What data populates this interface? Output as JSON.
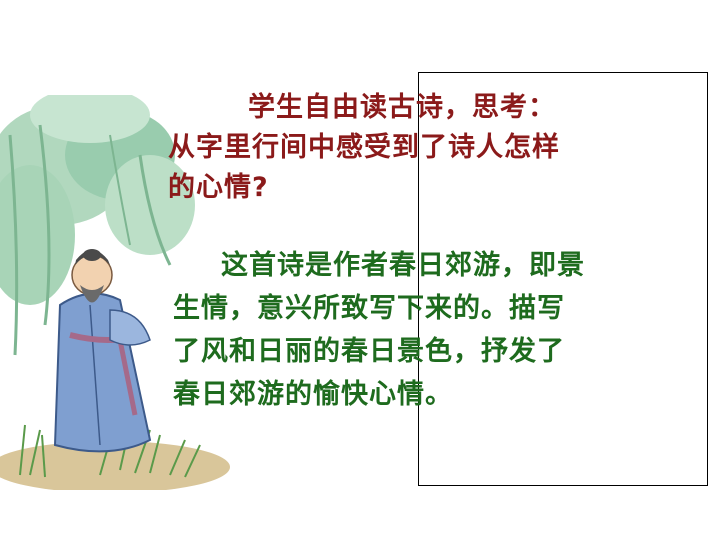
{
  "question": {
    "line1": "学生自由读古诗，思考：",
    "line2": "从字里行间中感受到了诗人怎样",
    "line3": "的心情?"
  },
  "answer": {
    "line1": "这首诗是作者春日郊游，即景",
    "line2": "生情，意兴所致写下来的。描写",
    "line3": "了风和日丽的春日景色，抒发了",
    "line4": "春日郊游的愉快心情。"
  },
  "colors": {
    "question_text": "#8b1a1a",
    "answer_text": "#1e6b1e",
    "panel_border": "#000000"
  },
  "illustration": {
    "icon": "poet-under-willow-illustration"
  }
}
